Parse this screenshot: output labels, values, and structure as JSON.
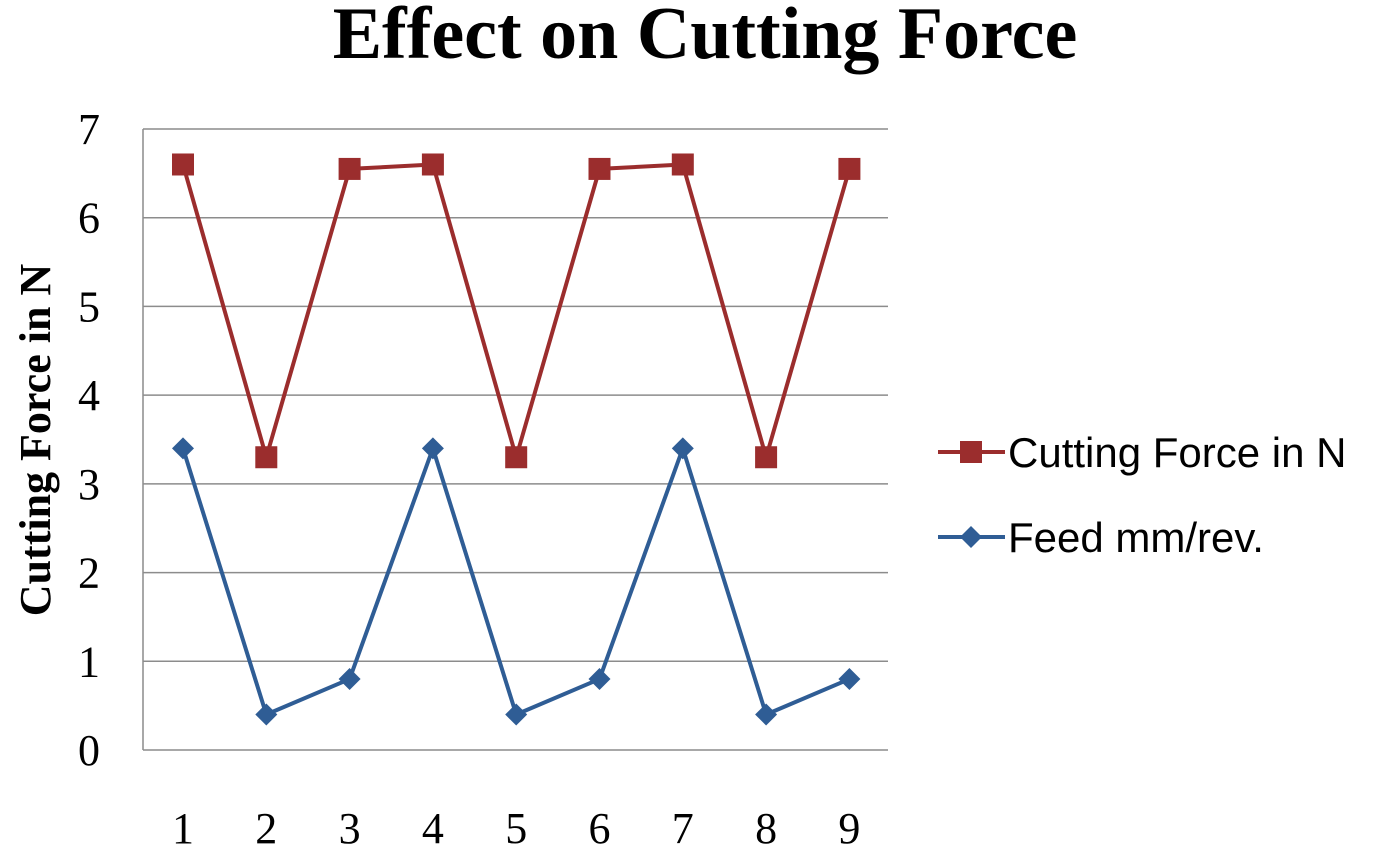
{
  "chart_data": {
    "type": "line",
    "title": "Effect on Cutting Force",
    "xlabel": "",
    "ylabel": "Cutting Force in N",
    "categories": [
      "1",
      "2",
      "3",
      "4",
      "5",
      "6",
      "7",
      "8",
      "9"
    ],
    "ylim": [
      0,
      7
    ],
    "yticks": [
      0,
      1,
      2,
      3,
      4,
      5,
      6,
      7
    ],
    "ytick_labels": [
      "0",
      "1",
      "2",
      "3",
      "4",
      "5",
      "6",
      "7"
    ],
    "grid": true,
    "legend_position": "right",
    "series": [
      {
        "name": "Cutting Force in N",
        "color": "#9b2d2d",
        "marker": "square",
        "values": [
          6.6,
          3.3,
          6.55,
          6.6,
          3.3,
          6.55,
          6.6,
          3.3,
          6.55
        ]
      },
      {
        "name": "Feed mm/rev.",
        "color": "#2f5d95",
        "marker": "diamond",
        "values": [
          3.4,
          0.4,
          0.8,
          3.4,
          0.4,
          0.8,
          3.4,
          0.4,
          0.8
        ]
      }
    ]
  }
}
